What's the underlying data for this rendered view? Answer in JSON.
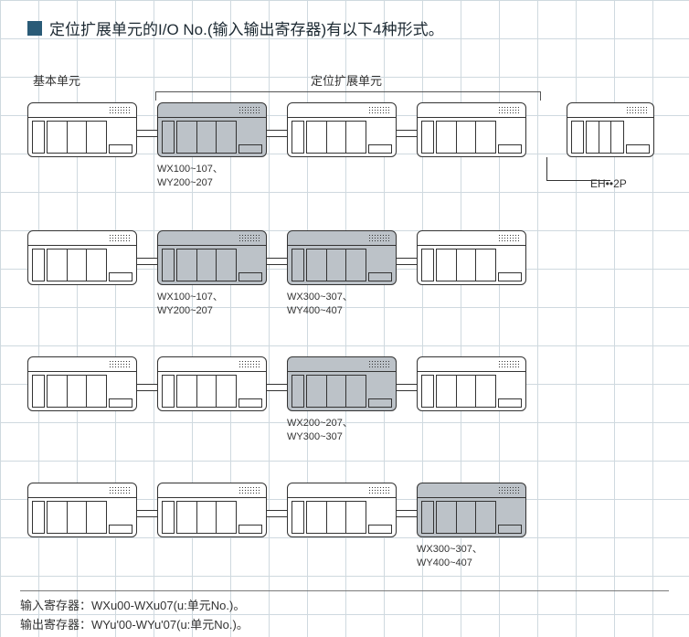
{
  "title": "定位扩展单元的I/O No.(输入输出寄存器)有以下4种形式。",
  "header": {
    "basic": "基本单元",
    "extension": "定位扩展单元"
  },
  "side": {
    "label": "EH••2P"
  },
  "rows": [
    {
      "units": [
        {
          "highlight": false,
          "label": ""
        },
        {
          "highlight": true,
          "label": "WX100~107、\nWY200~207"
        },
        {
          "highlight": false,
          "label": ""
        },
        {
          "highlight": false,
          "label": ""
        }
      ]
    },
    {
      "units": [
        {
          "highlight": false,
          "label": ""
        },
        {
          "highlight": true,
          "label": "WX100~107、\nWY200~207"
        },
        {
          "highlight": true,
          "label": "WX300~307、\nWY400~407"
        },
        {
          "highlight": false,
          "label": ""
        }
      ]
    },
    {
      "units": [
        {
          "highlight": false,
          "label": ""
        },
        {
          "highlight": false,
          "label": ""
        },
        {
          "highlight": true,
          "label": "WX200~207、\nWY300~307"
        },
        {
          "highlight": false,
          "label": ""
        }
      ]
    },
    {
      "units": [
        {
          "highlight": false,
          "label": ""
        },
        {
          "highlight": false,
          "label": ""
        },
        {
          "highlight": false,
          "label": ""
        },
        {
          "highlight": true,
          "label": "WX300~307、\nWY400~407"
        }
      ]
    }
  ],
  "footer": {
    "input": "输入寄存器：WXu00-WXu07(u:单元No.)。",
    "output": "输出寄存器：WYu'00-WYu'07(u:单元No.)。"
  },
  "colors": {
    "title_square": "#2a5b77",
    "unit_border": "#333333",
    "highlight_bg": "#bcc2c8",
    "unit_bg": "#ffffff"
  }
}
